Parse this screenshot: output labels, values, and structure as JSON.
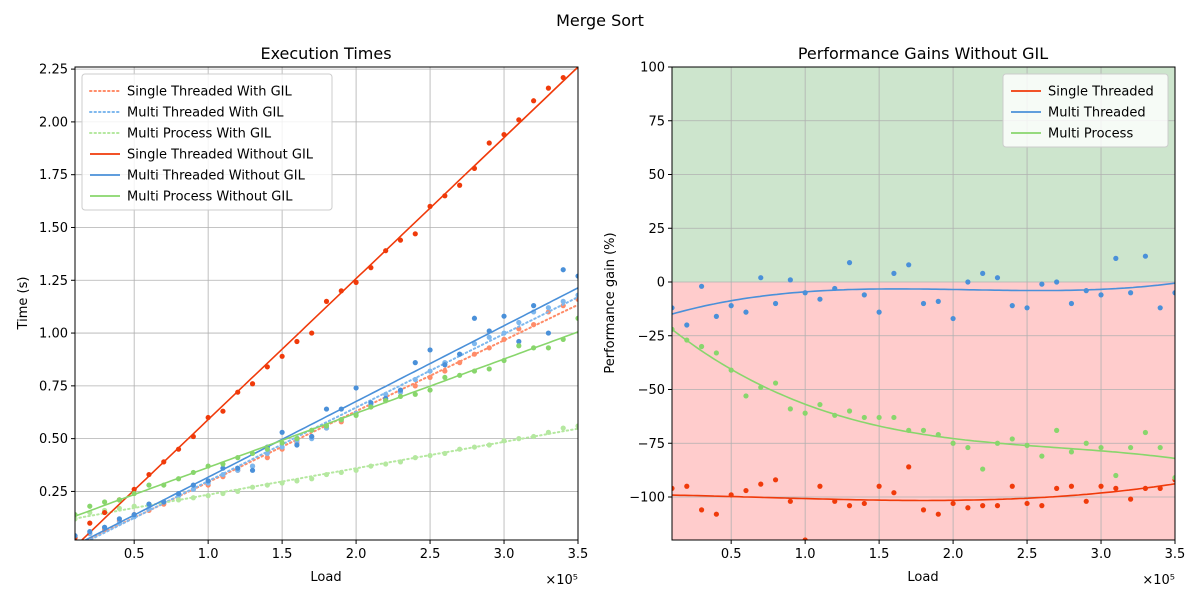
{
  "figure": {
    "suptitle": "Merge Sort"
  },
  "chart_data": [
    {
      "type": "line",
      "title": "Execution Times",
      "xlabel": "Load",
      "ylabel": "Time (s)",
      "x_offset_text": "×10⁵",
      "xlim": [
        0.1,
        3.5
      ],
      "ylim": [
        0.02,
        2.26
      ],
      "xticks": [
        0.5,
        1.0,
        1.5,
        2.0,
        2.5,
        3.0,
        3.5
      ],
      "xtick_labels": [
        "0.5",
        "1.0",
        "1.5",
        "2.0",
        "2.5",
        "3.0",
        "3.5"
      ],
      "yticks": [
        0.25,
        0.5,
        0.75,
        1.0,
        1.25,
        1.5,
        1.75,
        2.0,
        2.25
      ],
      "ytick_labels": [
        "0.25",
        "0.50",
        "0.75",
        "1.00",
        "1.25",
        "1.50",
        "1.75",
        "2.00",
        "2.25"
      ],
      "grid": true,
      "legend_position": "upper-left",
      "x": [
        0.1,
        0.2,
        0.3,
        0.4,
        0.5,
        0.6,
        0.7,
        0.8,
        0.9,
        1.0,
        1.1,
        1.2,
        1.3,
        1.4,
        1.5,
        1.6,
        1.7,
        1.8,
        1.9,
        2.0,
        2.1,
        2.2,
        2.3,
        2.4,
        2.5,
        2.6,
        2.7,
        2.8,
        2.9,
        3.0,
        3.1,
        3.2,
        3.3,
        3.4,
        3.5
      ],
      "series": [
        {
          "name": "Single Threaded With GIL",
          "color": "#ff8c69",
          "style": "dotted",
          "values": [
            0.04,
            0.05,
            0.07,
            0.11,
            0.14,
            0.16,
            0.19,
            0.23,
            0.26,
            0.28,
            0.32,
            0.35,
            0.37,
            0.41,
            0.45,
            0.48,
            0.51,
            0.55,
            0.58,
            0.62,
            0.65,
            0.68,
            0.72,
            0.75,
            0.79,
            0.82,
            0.86,
            0.9,
            0.93,
            0.97,
            1.02,
            1.04,
            1.1,
            1.13,
            1.16
          ]
        },
        {
          "name": "Multi Threaded With GIL",
          "color": "#7eb8ee",
          "style": "dotted",
          "values": [
            0.04,
            0.05,
            0.08,
            0.1,
            0.13,
            0.17,
            0.2,
            0.23,
            0.26,
            0.29,
            0.33,
            0.35,
            0.37,
            0.43,
            0.46,
            0.49,
            0.5,
            0.55,
            0.59,
            0.62,
            0.66,
            0.71,
            0.72,
            0.78,
            0.82,
            0.86,
            0.9,
            0.95,
            0.98,
            1.0,
            1.05,
            1.1,
            1.12,
            1.15,
            1.18
          ]
        },
        {
          "name": "Multi Process With GIL",
          "color": "#b5e8a0",
          "style": "dotted",
          "values": [
            0.12,
            0.15,
            0.16,
            0.17,
            0.18,
            0.19,
            0.2,
            0.21,
            0.22,
            0.23,
            0.24,
            0.25,
            0.27,
            0.28,
            0.29,
            0.3,
            0.31,
            0.33,
            0.34,
            0.35,
            0.37,
            0.38,
            0.39,
            0.41,
            0.42,
            0.43,
            0.45,
            0.46,
            0.47,
            0.49,
            0.5,
            0.51,
            0.53,
            0.55,
            0.56
          ]
        },
        {
          "name": "Single Threaded Without GIL",
          "color": "#f03a0a",
          "style": "solid",
          "values": [
            0.03,
            0.1,
            0.15,
            0.21,
            0.26,
            0.33,
            0.39,
            0.45,
            0.51,
            0.6,
            0.63,
            0.72,
            0.76,
            0.84,
            0.89,
            0.96,
            1.0,
            1.15,
            1.2,
            1.24,
            1.31,
            1.39,
            1.44,
            1.47,
            1.6,
            1.65,
            1.7,
            1.78,
            1.9,
            1.94,
            2.01,
            2.1,
            2.16,
            2.21,
            2.27
          ]
        },
        {
          "name": "Multi Threaded Without GIL",
          "color": "#4a90d9",
          "style": "solid",
          "values": [
            0.04,
            0.06,
            0.08,
            0.12,
            0.14,
            0.19,
            0.2,
            0.24,
            0.28,
            0.3,
            0.36,
            0.36,
            0.35,
            0.46,
            0.53,
            0.47,
            0.51,
            0.64,
            0.64,
            0.74,
            0.67,
            0.69,
            0.73,
            0.86,
            0.92,
            0.85,
            0.9,
            1.07,
            1.01,
            1.08,
            0.96,
            1.13,
            1.0,
            1.3,
            1.27
          ]
        },
        {
          "name": "Multi Process Without GIL",
          "color": "#88d66c",
          "style": "solid",
          "values": [
            0.14,
            0.18,
            0.2,
            0.21,
            0.24,
            0.28,
            0.28,
            0.31,
            0.34,
            0.37,
            0.38,
            0.41,
            0.43,
            0.45,
            0.48,
            0.5,
            0.54,
            0.56,
            0.59,
            0.61,
            0.65,
            0.68,
            0.7,
            0.71,
            0.73,
            0.79,
            0.8,
            0.82,
            0.83,
            0.87,
            0.94,
            0.93,
            0.93,
            0.97,
            1.07
          ]
        }
      ]
    },
    {
      "type": "line",
      "title": "Performance Gains Without GIL",
      "xlabel": "Load",
      "ylabel": "Performance gain (%)",
      "x_offset_text": "×10⁵",
      "xlim": [
        0.1,
        3.5
      ],
      "ylim": [
        -120,
        100
      ],
      "xticks": [
        0.5,
        1.0,
        1.5,
        2.0,
        2.5,
        3.0,
        3.5
      ],
      "xtick_labels": [
        "0.5",
        "1.0",
        "1.5",
        "2.0",
        "2.5",
        "3.0",
        "3.5"
      ],
      "yticks": [
        -100,
        -75,
        -50,
        -25,
        0,
        25,
        50,
        75,
        100
      ],
      "ytick_labels": [
        "−100",
        "−75",
        "−50",
        "−25",
        "0",
        "25",
        "50",
        "75",
        "100"
      ],
      "grid": true,
      "legend_position": "upper-right",
      "background_regions": [
        {
          "from": 0,
          "to": 100,
          "color": "#cde5cd"
        },
        {
          "from": -120,
          "to": 0,
          "color": "#ffcccc"
        }
      ],
      "x": [
        0.1,
        0.2,
        0.3,
        0.4,
        0.5,
        0.6,
        0.7,
        0.8,
        0.9,
        1.0,
        1.1,
        1.2,
        1.3,
        1.4,
        1.5,
        1.6,
        1.7,
        1.8,
        1.9,
        2.0,
        2.1,
        2.2,
        2.3,
        2.4,
        2.5,
        2.6,
        2.7,
        2.8,
        2.9,
        3.0,
        3.1,
        3.2,
        3.3,
        3.4,
        3.5
      ],
      "series": [
        {
          "name": "Single Threaded",
          "color": "#f03a0a",
          "values": [
            -96,
            -95,
            -106,
            -108,
            -99,
            -97,
            -94,
            -92,
            -102,
            -120,
            -95,
            -102,
            -104,
            -103,
            -95,
            -98,
            -86,
            -106,
            -108,
            -103,
            -105,
            -104,
            -104,
            -95,
            -103,
            -104,
            -96,
            -95,
            -102,
            -95,
            -96,
            -101,
            -96,
            -96,
            -92
          ]
        },
        {
          "name": "Multi Threaded",
          "color": "#4a90d9",
          "values": [
            -12,
            -20,
            -2,
            -16,
            -11,
            -14,
            2,
            -10,
            1,
            -5,
            -8,
            -3,
            9,
            -6,
            -14,
            4,
            8,
            -10,
            -9,
            -17,
            0,
            4,
            2,
            -11,
            -12,
            -1,
            0,
            -10,
            -4,
            -6,
            11,
            -5,
            12,
            -12,
            -5
          ]
        },
        {
          "name": "Multi Process",
          "color": "#88d66c",
          "values": [
            -22,
            -27,
            -30,
            -33,
            -41,
            -53,
            -49,
            -47,
            -59,
            -61,
            -57,
            -62,
            -60,
            -63,
            -63,
            -63,
            -69,
            -69,
            -71,
            -75,
            -77,
            -87,
            -75,
            -73,
            -76,
            -81,
            -69,
            -79,
            -75,
            -77,
            -90,
            -77,
            -70,
            -77,
            -91
          ]
        }
      ]
    }
  ]
}
